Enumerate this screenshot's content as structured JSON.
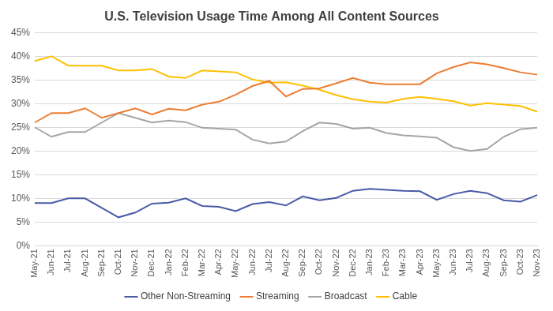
{
  "chart_data": {
    "type": "line",
    "title": "U.S. Television Usage Time Among All Content Sources",
    "categories": [
      "May-21",
      "Jun-21",
      "Jul-21",
      "Aug-21",
      "Sep-21",
      "Oct-21",
      "Nov-21",
      "Dec-21",
      "Jan-22",
      "Feb-22",
      "Mar-22",
      "Apr-22",
      "May-22",
      "Jun-22",
      "Jul-22",
      "Aug-22",
      "Sep-22",
      "Oct-22",
      "Nov-22",
      "Dec-22",
      "Jan-23",
      "Feb-23",
      "Mar-23",
      "Apr-23",
      "May-23",
      "Jun-23",
      "Jul-23",
      "Aug-23",
      "Sep-23",
      "Oct-23",
      "Nov-23"
    ],
    "series": [
      {
        "name": "Other Non-Streaming",
        "color": "#4a5aa8",
        "values": [
          9,
          9,
          10,
          10,
          8,
          6,
          7,
          8.9,
          9.1,
          10,
          8.4,
          8.2,
          7.3,
          8.8,
          9.2,
          8.5,
          10.4,
          9.6,
          10.1,
          11.6,
          12,
          11.8,
          11.6,
          11.5,
          9.7,
          10.9,
          11.6,
          11.1,
          9.6,
          9.3,
          10.7
        ]
      },
      {
        "name": "Streaming",
        "color": "#ed7d31",
        "values": [
          26,
          28,
          28,
          29,
          27,
          28,
          29,
          27.7,
          28.9,
          28.6,
          29.8,
          30.4,
          31.9,
          33.7,
          34.8,
          31.5,
          33.1,
          33.2,
          34.3,
          35.4,
          34.4,
          34.1,
          34.1,
          34.1,
          36.4,
          37.7,
          38.7,
          38.3,
          37.5,
          36.6,
          36.1
        ]
      },
      {
        "name": "Broadcast",
        "color": "#a5a5a5",
        "values": [
          25,
          23,
          24,
          24,
          26,
          28,
          27,
          26,
          26.4,
          26.1,
          24.9,
          24.7,
          24.5,
          22.4,
          21.6,
          22,
          24.2,
          26,
          25.7,
          24.7,
          24.9,
          23.8,
          23.3,
          23.1,
          22.8,
          20.8,
          20,
          20.4,
          23,
          24.6,
          24.9
        ]
      },
      {
        "name": "Cable",
        "color": "#ffc000",
        "values": [
          39,
          40,
          38,
          38,
          38,
          37,
          37,
          37.3,
          35.7,
          35.4,
          37,
          36.8,
          36.6,
          35.1,
          34.4,
          34.5,
          33.8,
          32.9,
          31.8,
          30.9,
          30.4,
          30.2,
          31,
          31.4,
          31,
          30.5,
          29.6,
          30.1,
          29.8,
          29.5,
          28.3
        ]
      }
    ],
    "ylim": [
      0,
      45
    ],
    "yticks": [
      {
        "value": 0,
        "label": "0%"
      },
      {
        "value": 5,
        "label": "5%"
      },
      {
        "value": 10,
        "label": "10%"
      },
      {
        "value": 15,
        "label": "15%"
      },
      {
        "value": 20,
        "label": "20%"
      },
      {
        "value": 25,
        "label": "25%"
      },
      {
        "value": 30,
        "label": "30%"
      },
      {
        "value": 35,
        "label": "35%"
      },
      {
        "value": 40,
        "label": "40%"
      },
      {
        "value": 45,
        "label": "45%"
      }
    ],
    "grid": true,
    "legend": "bottom"
  }
}
